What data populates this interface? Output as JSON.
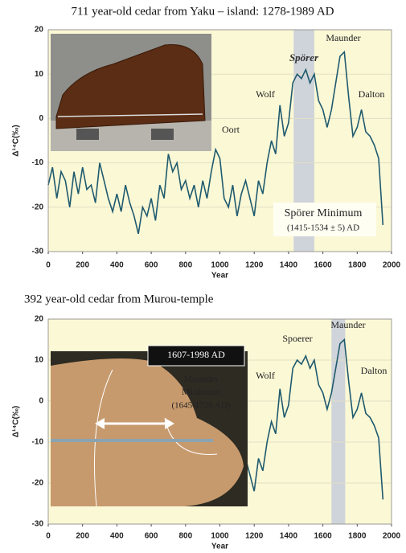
{
  "chart_data": [
    {
      "type": "line",
      "title": "711 year-old cedar from Yaku – island:  1278-1989 AD",
      "xlabel": "Year",
      "ylabel": "Δ¹⁴C(‰)",
      "xlim": [
        0,
        2000
      ],
      "xticks": [
        0,
        200,
        400,
        600,
        800,
        1000,
        1200,
        1400,
        1600,
        1800,
        2000
      ],
      "ylim": [
        -30,
        20
      ],
      "yticks": [
        -30,
        -20,
        -10,
        0,
        10,
        20
      ],
      "grid": true,
      "shade": [
        1430,
        1550
      ],
      "color": "#1f5a6e",
      "x": [
        0,
        25,
        50,
        75,
        100,
        125,
        150,
        175,
        200,
        225,
        250,
        275,
        300,
        325,
        350,
        375,
        400,
        425,
        450,
        475,
        500,
        525,
        550,
        575,
        600,
        625,
        650,
        675,
        700,
        725,
        750,
        775,
        800,
        825,
        850,
        875,
        900,
        925,
        950,
        975,
        1000,
        1025,
        1050,
        1075,
        1100,
        1125,
        1150,
        1175,
        1200,
        1225,
        1250,
        1275,
        1300,
        1325,
        1350,
        1375,
        1400,
        1425,
        1450,
        1475,
        1500,
        1525,
        1550,
        1575,
        1600,
        1625,
        1650,
        1675,
        1700,
        1725,
        1750,
        1775,
        1800,
        1825,
        1850,
        1875,
        1900,
        1925,
        1950
      ],
      "values": [
        -15,
        -11,
        -18,
        -12,
        -14,
        -20,
        -12,
        -17,
        -11,
        -16,
        -15,
        -19,
        -10,
        -14,
        -18,
        -21,
        -17,
        -21,
        -15,
        -19,
        -22,
        -26,
        -20,
        -22,
        -18,
        -23,
        -15,
        -18,
        -8,
        -12,
        -10,
        -16,
        -14,
        -18,
        -15,
        -20,
        -14,
        -18,
        -12,
        -7,
        -9,
        -18,
        -20,
        -15,
        -22,
        -17,
        -14,
        -18,
        -22,
        -14,
        -17,
        -10,
        -5,
        -8,
        3,
        -4,
        -1,
        8,
        10,
        9,
        11,
        8,
        10,
        4,
        2,
        -2,
        2,
        8,
        14,
        15,
        5,
        -4,
        -2,
        2,
        -3,
        -4,
        -6,
        -9,
        -24
      ],
      "annotations": [
        "Spörer",
        "Maunder",
        "Wolf",
        "Dalton",
        "Oort",
        "Spörer Minimum",
        "(1415-1534 ± 5) AD"
      ]
    },
    {
      "type": "line",
      "title": "392 year-old cedar from Murou-temple",
      "xlabel": "Year",
      "ylabel": "Δ¹⁴C(‰)",
      "xlim": [
        0,
        2000
      ],
      "xticks": [
        0,
        200,
        400,
        600,
        800,
        1000,
        1200,
        1400,
        1600,
        1800,
        2000
      ],
      "ylim": [
        -30,
        20
      ],
      "yticks": [
        -30,
        -20,
        -10,
        0,
        10,
        20
      ],
      "grid": true,
      "shade": [
        1650,
        1730
      ],
      "color": "#1f5a6e",
      "x": [
        1125,
        1150,
        1175,
        1200,
        1225,
        1250,
        1275,
        1300,
        1325,
        1350,
        1375,
        1400,
        1425,
        1450,
        1475,
        1500,
        1525,
        1550,
        1575,
        1600,
        1625,
        1650,
        1675,
        1700,
        1725,
        1750,
        1775,
        1800,
        1825,
        1850,
        1875,
        1900,
        1925,
        1950
      ],
      "values": [
        -17,
        -14,
        -18,
        -22,
        -14,
        -17,
        -10,
        -5,
        -8,
        3,
        -4,
        -1,
        8,
        10,
        9,
        11,
        8,
        10,
        4,
        2,
        -2,
        2,
        8,
        14,
        15,
        5,
        -4,
        -2,
        2,
        -3,
        -4,
        -6,
        -9,
        -24
      ],
      "annotations": [
        "Spoerer",
        "Maunder",
        "Wolf",
        "Dalton",
        "1607-1998 AD",
        "Maunder",
        "Minimum",
        "(1645-1720 AD)"
      ]
    }
  ]
}
